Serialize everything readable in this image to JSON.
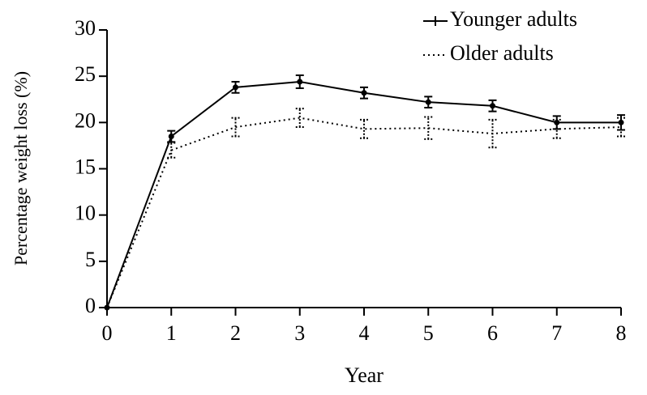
{
  "chart_data": {
    "type": "line",
    "x_label": "Year",
    "y_label": "Percentage weight loss (%)",
    "x": [
      0,
      1,
      2,
      3,
      4,
      5,
      6,
      7,
      8
    ],
    "series": [
      {
        "name": "Younger adults",
        "color": "#000000",
        "dash": "solid",
        "values": [
          0,
          18.5,
          23.8,
          24.4,
          23.2,
          22.2,
          21.8,
          20.0,
          20.0
        ],
        "errors": [
          0,
          0.6,
          0.6,
          0.7,
          0.6,
          0.6,
          0.6,
          0.7,
          0.8
        ]
      },
      {
        "name": "Older adults",
        "color": "#000000",
        "dash": "dotted",
        "values": [
          0,
          17.0,
          19.5,
          20.5,
          19.3,
          19.4,
          18.8,
          19.3,
          19.5
        ],
        "errors": [
          0,
          0.8,
          1.0,
          1.0,
          1.0,
          1.2,
          1.5,
          1.0,
          1.0
        ]
      }
    ],
    "xlim": [
      0,
      8
    ],
    "xticks": [
      0,
      1,
      2,
      3,
      4,
      5,
      6,
      7,
      8
    ],
    "ylim": [
      0,
      30
    ],
    "yticks": [
      0,
      5,
      10,
      15,
      20,
      25,
      30
    ],
    "grid": false,
    "legend": "upper right"
  }
}
